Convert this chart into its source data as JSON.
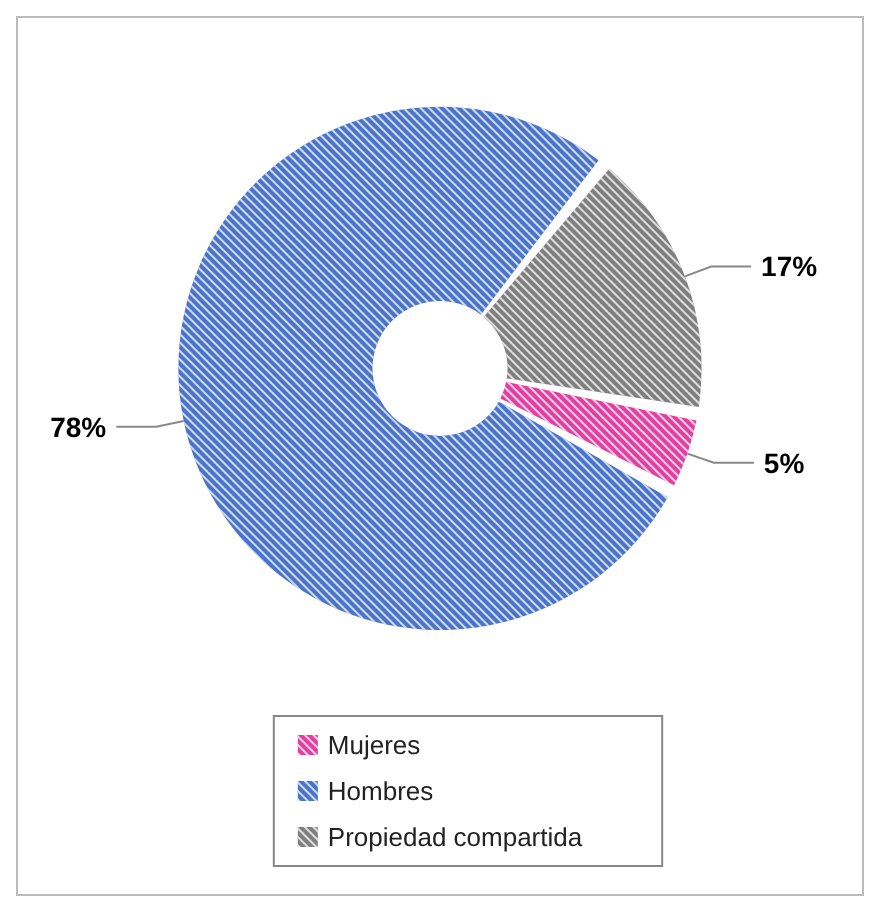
{
  "chart_data": {
    "type": "donut",
    "categories": [
      "Mujeres",
      "Hombres",
      "Propiedad compartida"
    ],
    "values": [
      5,
      78,
      17
    ],
    "colors": [
      "#e0409f",
      "#4a74c9",
      "#7f7f7f"
    ],
    "legend": "bottom",
    "value_labels": [
      "5%",
      "78%",
      "17%"
    ]
  }
}
